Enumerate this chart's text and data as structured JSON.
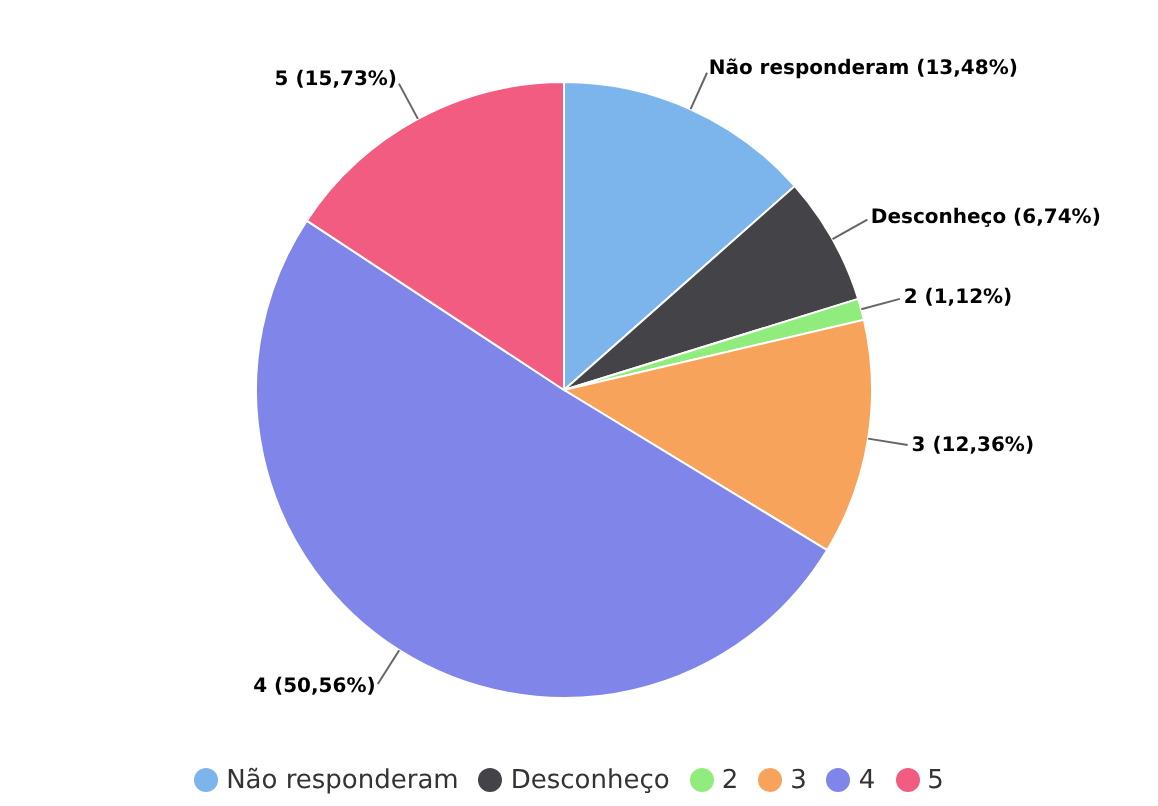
{
  "chart_data": {
    "type": "pie",
    "categories": [
      "Não responderam",
      "Desconheço",
      "2",
      "3",
      "4",
      "5"
    ],
    "values": [
      13.48,
      6.74,
      1.12,
      12.36,
      50.56,
      15.73
    ],
    "colors": [
      "#7cb5ec",
      "#434348",
      "#90ed7d",
      "#f7a35c",
      "#8085e9",
      "#f15c80"
    ],
    "value_labels": [
      "Não responderam (13,48%)",
      "Desconheço (6,74%)",
      "2 (1,12%)",
      "3 (12,36%)",
      "4 (50,56%)",
      "5 (15,73%)"
    ],
    "legend": "bottom"
  }
}
